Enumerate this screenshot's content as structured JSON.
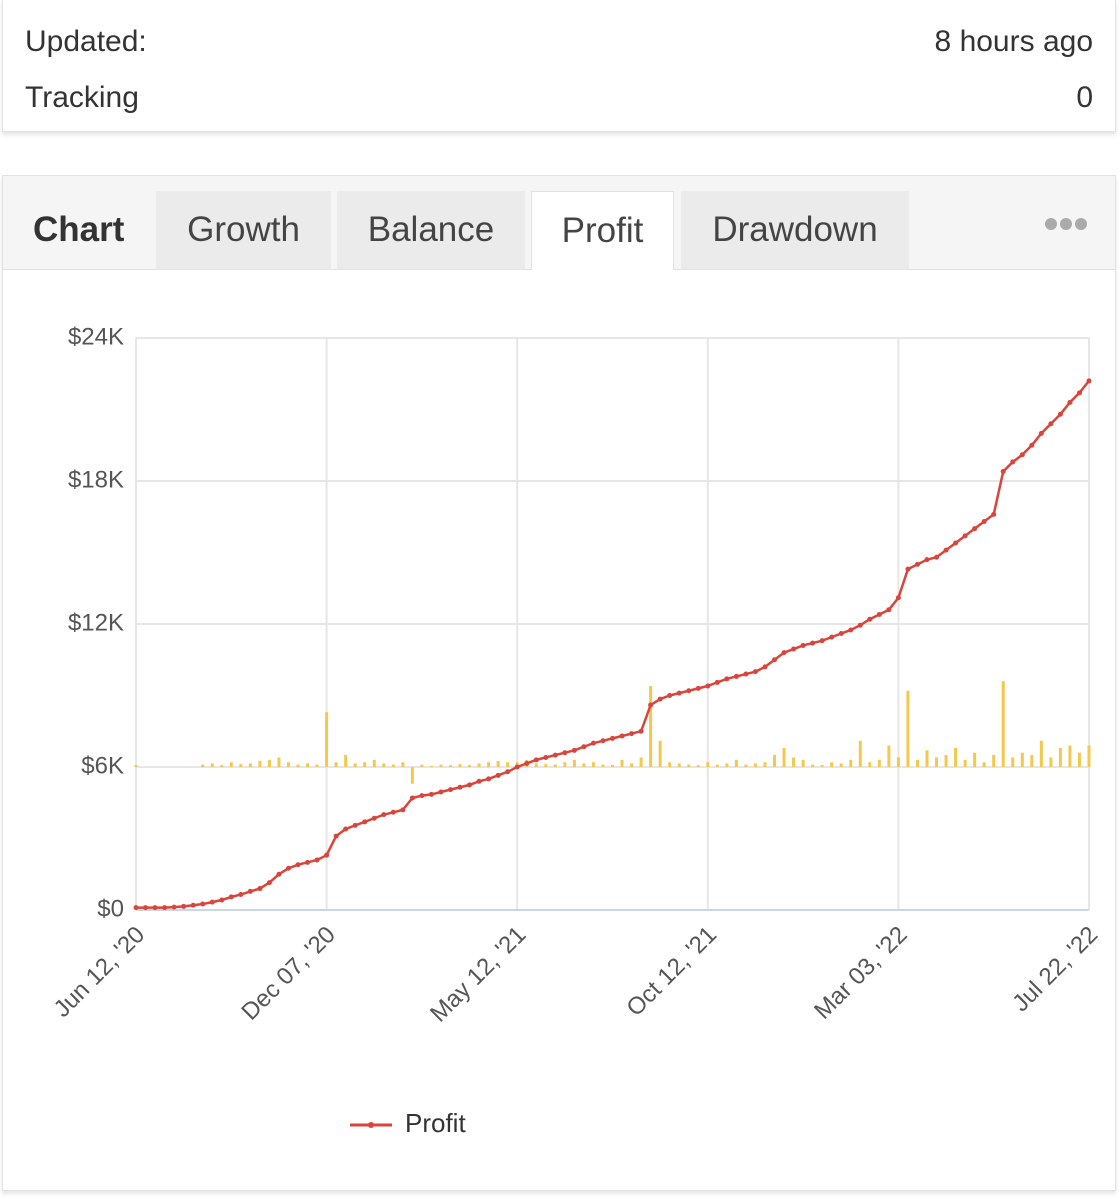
{
  "info": {
    "rows": [
      [
        "Updated:",
        "8 hours ago"
      ],
      [
        "Tracking",
        0
      ]
    ]
  },
  "tabs": {
    "label": "Chart",
    "items": [
      "Growth",
      "Balance",
      "Profit",
      "Drawdown"
    ]
  },
  "chart_data": {
    "type": "line",
    "categories": [
      "Jun 12, '20",
      null,
      null,
      null,
      null,
      null,
      null,
      null,
      null,
      null,
      null,
      null,
      null,
      null,
      null,
      null,
      null,
      null,
      null,
      null,
      "Dec 07, '20",
      null,
      null,
      null,
      null,
      null,
      null,
      null,
      null,
      null,
      null,
      null,
      null,
      null,
      null,
      null,
      null,
      null,
      null,
      null,
      "May 12, '21",
      null,
      null,
      null,
      null,
      null,
      null,
      null,
      null,
      null,
      null,
      null,
      null,
      null,
      null,
      null,
      null,
      null,
      null,
      null,
      "Oct 12, '21",
      null,
      null,
      null,
      null,
      null,
      null,
      null,
      null,
      null,
      null,
      null,
      null,
      null,
      null,
      null,
      null,
      null,
      null,
      null,
      "Mar 03, '22",
      null,
      null,
      null,
      null,
      null,
      null,
      null,
      null,
      null,
      null,
      null,
      null,
      null,
      null,
      null,
      null,
      null,
      null,
      null,
      "Jul 22, '22"
    ],
    "series": [
      {
        "name": "Profit",
        "color": "#d9453b",
        "values": [
          100,
          100,
          100,
          100,
          120,
          150,
          200,
          250,
          330,
          420,
          550,
          650,
          780,
          900,
          1150,
          1500,
          1750,
          1900,
          2000,
          2100,
          2300,
          3100,
          3400,
          3550,
          3700,
          3850,
          4000,
          4100,
          4200,
          4700,
          4800,
          4850,
          4950,
          5050,
          5150,
          5250,
          5400,
          5500,
          5650,
          5800,
          6000,
          6150,
          6300,
          6400,
          6500,
          6600,
          6700,
          6850,
          7000,
          7100,
          7200,
          7300,
          7400,
          7500,
          8600,
          8850,
          9000,
          9100,
          9200,
          9300,
          9400,
          9550,
          9700,
          9800,
          9900,
          10000,
          10200,
          10500,
          10800,
          10950,
          11100,
          11200,
          11300,
          11450,
          11600,
          11750,
          11950,
          12200,
          12400,
          12600,
          13100,
          14300,
          14500,
          14700,
          14800,
          15100,
          15400,
          15700,
          16000,
          16300,
          16600,
          18400,
          18800,
          19100,
          19500,
          20000,
          20400,
          20800,
          21300,
          21700,
          22200
        ]
      },
      {
        "type": "bar",
        "axis": "y2",
        "color": "#f2c94c",
        "values": [
          80,
          0,
          0,
          0,
          0,
          0,
          0,
          100,
          150,
          80,
          200,
          120,
          150,
          250,
          300,
          400,
          200,
          100,
          150,
          100,
          2300,
          200,
          500,
          150,
          200,
          300,
          150,
          100,
          200,
          -700,
          100,
          50,
          100,
          80,
          120,
          80,
          150,
          200,
          250,
          200,
          200,
          300,
          150,
          120,
          100,
          200,
          300,
          150,
          200,
          100,
          80,
          300,
          150,
          400,
          3400,
          1100,
          200,
          150,
          100,
          80,
          200,
          100,
          150,
          300,
          100,
          150,
          200,
          500,
          800,
          400,
          300,
          100,
          80,
          200,
          150,
          300,
          1100,
          200,
          300,
          900,
          400,
          3200,
          300,
          700,
          400,
          500,
          800,
          300,
          600,
          200,
          500,
          3600,
          400,
          600,
          500,
          1100,
          400,
          800,
          900,
          600,
          900
        ]
      }
    ],
    "ylim": [
      0,
      24000
    ],
    "yticks": [
      {
        "value": 0,
        "label": "$0"
      },
      {
        "value": 6000,
        "label": "$6K"
      },
      {
        "value": 12000,
        "label": "$12K"
      },
      {
        "value": 18000,
        "label": "$18K"
      },
      {
        "value": 24000,
        "label": "$24K"
      }
    ],
    "y2lim": [
      -6000,
      18000
    ],
    "grid": true,
    "legend": "bottom"
  }
}
